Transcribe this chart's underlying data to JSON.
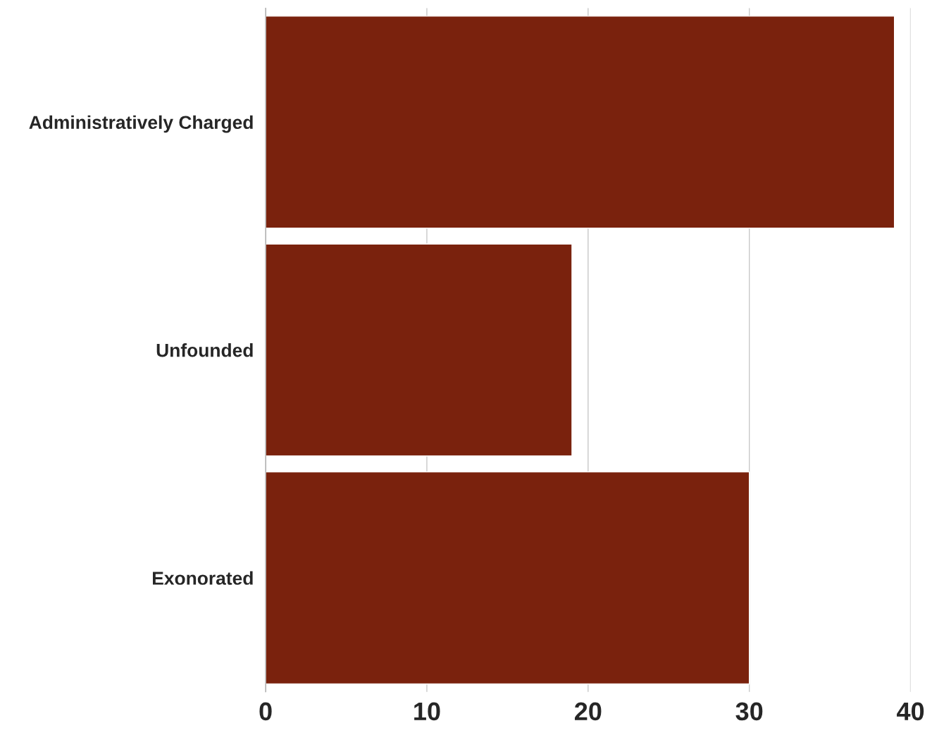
{
  "chart_data": {
    "type": "bar",
    "orientation": "horizontal",
    "categories": [
      "Administratively Charged",
      "Unfounded",
      "Exonorated"
    ],
    "values": [
      39,
      19,
      30
    ],
    "color": "#7a220d",
    "xlim": [
      0,
      40
    ],
    "xticks": [
      0,
      10,
      20,
      30,
      40
    ],
    "grid": "x"
  }
}
